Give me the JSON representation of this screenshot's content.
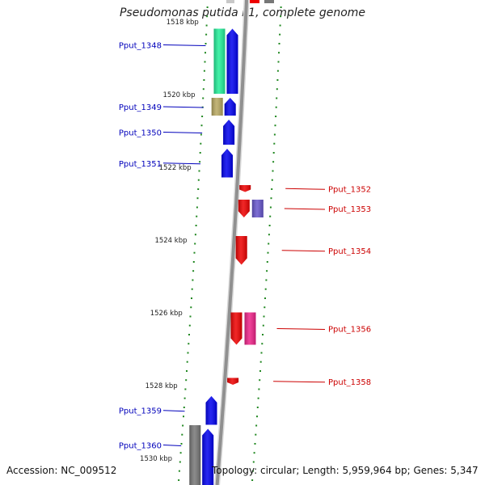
{
  "title": "Pseudomonas putida F1, complete genome",
  "footer": {
    "accession": "Accession: NC_009512",
    "summary": "Topology: circular; Length: 5,959,964 bp; Genes: 5,347"
  },
  "scale": {
    "labels": [
      {
        "text": "1518 kbp",
        "kbp": 1518
      },
      {
        "text": "1520 kbp",
        "kbp": 1520
      },
      {
        "text": "1522 kbp",
        "kbp": 1522
      },
      {
        "text": "1524 kbp",
        "kbp": 1524
      },
      {
        "text": "1526 kbp",
        "kbp": 1526
      },
      {
        "text": "1528 kbp",
        "kbp": 1528
      },
      {
        "text": "1530 kbp",
        "kbp": 1530
      }
    ]
  },
  "colors": {
    "forward": "#0000ee",
    "reverse": "#ee0000",
    "forward_label": "#0000bb",
    "reverse_label": "#cc0000",
    "backbone": "#909090",
    "tick": "#228822"
  },
  "genes": [
    {
      "label": "Pput_1348",
      "strand": "forward",
      "start": 1518.1,
      "end": 1520.0
    },
    {
      "label": "Pput_1349",
      "strand": "forward",
      "start": 1520.0,
      "end": 1520.6
    },
    {
      "label": "Pput_1350",
      "strand": "forward",
      "start": 1520.6,
      "end": 1521.4
    },
    {
      "label": "Pput_1351",
      "strand": "forward",
      "start": 1521.4,
      "end": 1522.3
    },
    {
      "label": "Pput_1352",
      "strand": "reverse",
      "start": 1522.4,
      "end": 1522.7
    },
    {
      "label": "Pput_1353",
      "strand": "reverse",
      "start": 1522.8,
      "end": 1523.4
    },
    {
      "label": "Pput_1354",
      "strand": "reverse",
      "start": 1523.8,
      "end": 1524.7
    },
    {
      "label": "Pput_1356",
      "strand": "reverse",
      "start": 1525.9,
      "end": 1526.9
    },
    {
      "label": "Pput_1358",
      "strand": "reverse",
      "start": 1527.7,
      "end": 1528.0
    },
    {
      "label": "Pput_1359",
      "strand": "forward",
      "start": 1528.2,
      "end": 1529.1
    },
    {
      "label": "Pput_1360",
      "strand": "forward",
      "start": 1529.1,
      "end": 1530.8
    }
  ],
  "features": [
    {
      "type": "CDS",
      "strand": "forward",
      "start": 1518.1,
      "end": 1520.0,
      "color": "#22ee99"
    },
    {
      "type": "CDS",
      "strand": "forward",
      "start": 1520.0,
      "end": 1520.6,
      "color": "#b8a860"
    },
    {
      "type": "CDS",
      "strand": "reverse",
      "start": 1522.8,
      "end": 1523.4,
      "color": "#6655cc"
    },
    {
      "type": "CDS",
      "strand": "reverse",
      "start": 1525.9,
      "end": 1526.9,
      "color": "#ee2288"
    },
    {
      "type": "CDS",
      "strand": "forward",
      "start": 1529.0,
      "end": 1530.8,
      "color": "#777777"
    }
  ]
}
